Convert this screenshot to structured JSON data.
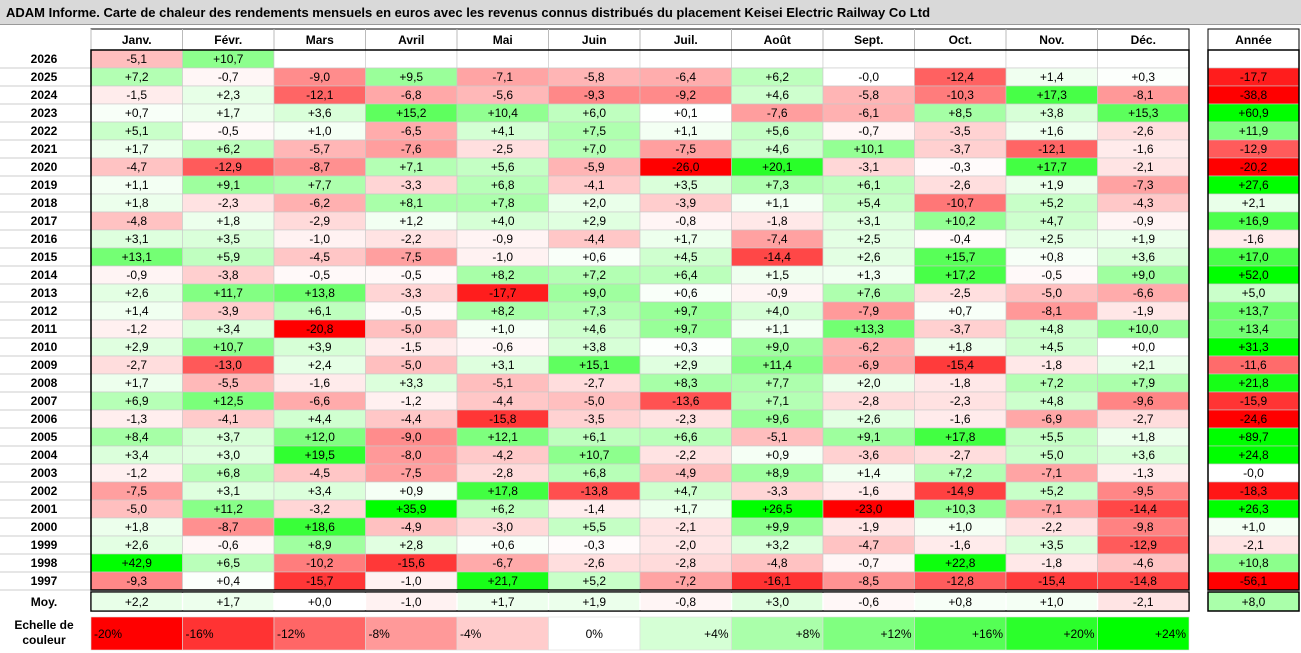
{
  "title": "ADAM Informe. Carte de chaleur des rendements mensuels en euros avec les revenus connus distribués du placement Keisei Electric Railway Co Ltd",
  "chart_data": {
    "type": "heatmap",
    "months": [
      "Janv.",
      "Févr.",
      "Mars",
      "Avril",
      "Mai",
      "Juin",
      "Juil.",
      "Août",
      "Sept.",
      "Oct.",
      "Nov.",
      "Déc."
    ],
    "year_header": "Année",
    "rows": [
      {
        "year": "2026",
        "values": [
          -5.1,
          10.7,
          null,
          null,
          null,
          null,
          null,
          null,
          null,
          null,
          null,
          null
        ],
        "labels": [
          "-5,1",
          "+10,7",
          "",
          "",
          "",
          "",
          "",
          "",
          "",
          "",
          "",
          ""
        ],
        "annual": null,
        "annual_label": ""
      },
      {
        "year": "2025",
        "values": [
          7.2,
          -0.7,
          -9.0,
          9.5,
          -7.1,
          -5.8,
          -6.4,
          6.2,
          -0.0,
          -12.4,
          1.4,
          0.3
        ],
        "labels": [
          "+7,2",
          "-0,7",
          "-9,0",
          "+9,5",
          "-7,1",
          "-5,8",
          "-6,4",
          "+6,2",
          "-0,0",
          "-12,4",
          "+1,4",
          "+0,3"
        ],
        "annual": -17.7,
        "annual_label": "-17,7"
      },
      {
        "year": "2024",
        "values": [
          -1.5,
          2.3,
          -12.1,
          -6.8,
          -5.6,
          -9.3,
          -9.2,
          4.6,
          -5.8,
          -10.3,
          17.3,
          -8.1
        ],
        "labels": [
          "-1,5",
          "+2,3",
          "-12,1",
          "-6,8",
          "-5,6",
          "-9,3",
          "-9,2",
          "+4,6",
          "-5,8",
          "-10,3",
          "+17,3",
          "-8,1"
        ],
        "annual": -38.8,
        "annual_label": "-38,8"
      },
      {
        "year": "2023",
        "values": [
          0.7,
          1.7,
          3.6,
          15.2,
          10.4,
          6.0,
          0.1,
          -7.6,
          -6.1,
          8.5,
          3.8,
          15.3
        ],
        "labels": [
          "+0,7",
          "+1,7",
          "+3,6",
          "+15,2",
          "+10,4",
          "+6,0",
          "+0,1",
          "-7,6",
          "-6,1",
          "+8,5",
          "+3,8",
          "+15,3"
        ],
        "annual": 60.9,
        "annual_label": "+60,9"
      },
      {
        "year": "2022",
        "values": [
          5.1,
          -0.5,
          1.0,
          -6.5,
          4.1,
          7.5,
          1.1,
          5.6,
          -0.7,
          -3.5,
          1.6,
          -2.6
        ],
        "labels": [
          "+5,1",
          "-0,5",
          "+1,0",
          "-6,5",
          "+4,1",
          "+7,5",
          "+1,1",
          "+5,6",
          "-0,7",
          "-3,5",
          "+1,6",
          "-2,6"
        ],
        "annual": 11.9,
        "annual_label": "+11,9"
      },
      {
        "year": "2021",
        "values": [
          1.7,
          6.2,
          -5.7,
          -7.6,
          -2.5,
          7.0,
          -7.5,
          4.6,
          10.1,
          -3.7,
          -12.1,
          -1.6
        ],
        "labels": [
          "+1,7",
          "+6,2",
          "-5,7",
          "-7,6",
          "-2,5",
          "+7,0",
          "-7,5",
          "+4,6",
          "+10,1",
          "-3,7",
          "-12,1",
          "-1,6"
        ],
        "annual": -12.9,
        "annual_label": "-12,9"
      },
      {
        "year": "2020",
        "values": [
          -4.7,
          -12.9,
          -8.7,
          7.1,
          5.6,
          -5.9,
          -26.0,
          20.1,
          -3.1,
          -0.3,
          17.7,
          -2.1
        ],
        "labels": [
          "-4,7",
          "-12,9",
          "-8,7",
          "+7,1",
          "+5,6",
          "-5,9",
          "-26,0",
          "+20,1",
          "-3,1",
          "-0,3",
          "+17,7",
          "-2,1"
        ],
        "annual": -20.2,
        "annual_label": "-20,2"
      },
      {
        "year": "2019",
        "values": [
          1.1,
          9.1,
          7.7,
          -3.3,
          6.8,
          -4.1,
          3.5,
          7.3,
          6.1,
          -2.6,
          1.9,
          -7.3
        ],
        "labels": [
          "+1,1",
          "+9,1",
          "+7,7",
          "-3,3",
          "+6,8",
          "-4,1",
          "+3,5",
          "+7,3",
          "+6,1",
          "-2,6",
          "+1,9",
          "-7,3"
        ],
        "annual": 27.6,
        "annual_label": "+27,6"
      },
      {
        "year": "2018",
        "values": [
          1.8,
          -2.3,
          -6.2,
          8.1,
          7.8,
          2.0,
          -3.9,
          1.1,
          5.4,
          -10.7,
          5.2,
          -4.3
        ],
        "labels": [
          "+1,8",
          "-2,3",
          "-6,2",
          "+8,1",
          "+7,8",
          "+2,0",
          "-3,9",
          "+1,1",
          "+5,4",
          "-10,7",
          "+5,2",
          "-4,3"
        ],
        "annual": 2.1,
        "annual_label": "+2,1"
      },
      {
        "year": "2017",
        "values": [
          -4.8,
          1.8,
          -2.9,
          1.2,
          4.0,
          2.9,
          -0.8,
          -1.8,
          3.1,
          10.2,
          4.7,
          -0.9
        ],
        "labels": [
          "-4,8",
          "+1,8",
          "-2,9",
          "+1,2",
          "+4,0",
          "+2,9",
          "-0,8",
          "-1,8",
          "+3,1",
          "+10,2",
          "+4,7",
          "-0,9"
        ],
        "annual": 16.9,
        "annual_label": "+16,9"
      },
      {
        "year": "2016",
        "values": [
          3.1,
          3.5,
          -1.0,
          -2.2,
          -0.9,
          -4.4,
          1.7,
          -7.4,
          2.5,
          -0.4,
          2.5,
          1.9
        ],
        "labels": [
          "+3,1",
          "+3,5",
          "-1,0",
          "-2,2",
          "-0,9",
          "-4,4",
          "+1,7",
          "-7,4",
          "+2,5",
          "-0,4",
          "+2,5",
          "+1,9"
        ],
        "annual": -1.6,
        "annual_label": "-1,6"
      },
      {
        "year": "2015",
        "values": [
          13.1,
          5.9,
          -4.5,
          -7.5,
          -1.0,
          0.6,
          4.5,
          -14.4,
          2.6,
          15.7,
          0.8,
          3.6
        ],
        "labels": [
          "+13,1",
          "+5,9",
          "-4,5",
          "-7,5",
          "-1,0",
          "+0,6",
          "+4,5",
          "-14,4",
          "+2,6",
          "+15,7",
          "+0,8",
          "+3,6"
        ],
        "annual": 17.0,
        "annual_label": "+17,0"
      },
      {
        "year": "2014",
        "values": [
          -0.9,
          -3.8,
          -0.5,
          -0.5,
          8.2,
          7.2,
          6.4,
          1.5,
          1.3,
          17.2,
          -0.5,
          9.0
        ],
        "labels": [
          "-0,9",
          "-3,8",
          "-0,5",
          "-0,5",
          "+8,2",
          "+7,2",
          "+6,4",
          "+1,5",
          "+1,3",
          "+17,2",
          "-0,5",
          "+9,0"
        ],
        "annual": 52.0,
        "annual_label": "+52,0"
      },
      {
        "year": "2013",
        "values": [
          2.6,
          11.7,
          13.8,
          -3.3,
          -17.7,
          9.0,
          0.6,
          -0.9,
          7.6,
          -2.5,
          -5.0,
          -6.6
        ],
        "labels": [
          "+2,6",
          "+11,7",
          "+13,8",
          "-3,3",
          "-17,7",
          "+9,0",
          "+0,6",
          "-0,9",
          "+7,6",
          "-2,5",
          "-5,0",
          "-6,6"
        ],
        "annual": 5.0,
        "annual_label": "+5,0"
      },
      {
        "year": "2012",
        "values": [
          1.4,
          -3.9,
          6.1,
          -0.5,
          8.2,
          7.3,
          9.7,
          4.0,
          -7.9,
          0.7,
          -8.1,
          -1.9
        ],
        "labels": [
          "+1,4",
          "-3,9",
          "+6,1",
          "-0,5",
          "+8,2",
          "+7,3",
          "+9,7",
          "+4,0",
          "-7,9",
          "+0,7",
          "-8,1",
          "-1,9"
        ],
        "annual": 13.7,
        "annual_label": "+13,7"
      },
      {
        "year": "2011",
        "values": [
          -1.2,
          3.4,
          -20.8,
          -5.0,
          1.0,
          4.6,
          9.7,
          1.1,
          13.3,
          -3.7,
          4.8,
          10.0
        ],
        "labels": [
          "-1,2",
          "+3,4",
          "-20,8",
          "-5,0",
          "+1,0",
          "+4,6",
          "+9,7",
          "+1,1",
          "+13,3",
          "-3,7",
          "+4,8",
          "+10,0"
        ],
        "annual": 13.4,
        "annual_label": "+13,4"
      },
      {
        "year": "2010",
        "values": [
          2.9,
          10.7,
          3.9,
          -1.5,
          -0.6,
          3.8,
          0.3,
          9.0,
          -6.2,
          1.8,
          4.5,
          0.0
        ],
        "labels": [
          "+2,9",
          "+10,7",
          "+3,9",
          "-1,5",
          "-0,6",
          "+3,8",
          "+0,3",
          "+9,0",
          "-6,2",
          "+1,8",
          "+4,5",
          "+0,0"
        ],
        "annual": 31.3,
        "annual_label": "+31,3"
      },
      {
        "year": "2009",
        "values": [
          -2.7,
          -13.0,
          2.4,
          -5.0,
          3.1,
          15.1,
          2.9,
          11.4,
          -6.9,
          -15.4,
          -1.8,
          2.1
        ],
        "labels": [
          "-2,7",
          "-13,0",
          "+2,4",
          "-5,0",
          "+3,1",
          "+15,1",
          "+2,9",
          "+11,4",
          "-6,9",
          "-15,4",
          "-1,8",
          "+2,1"
        ],
        "annual": -11.6,
        "annual_label": "-11,6"
      },
      {
        "year": "2008",
        "values": [
          1.7,
          -5.5,
          -1.6,
          3.3,
          -5.1,
          -2.7,
          8.3,
          7.7,
          2.0,
          -1.8,
          7.2,
          7.9
        ],
        "labels": [
          "+1,7",
          "-5,5",
          "-1,6",
          "+3,3",
          "-5,1",
          "-2,7",
          "+8,3",
          "+7,7",
          "+2,0",
          "-1,8",
          "+7,2",
          "+7,9"
        ],
        "annual": 21.8,
        "annual_label": "+21,8"
      },
      {
        "year": "2007",
        "values": [
          6.9,
          12.5,
          -6.6,
          -1.2,
          -4.4,
          -5.0,
          -13.6,
          7.1,
          -2.8,
          -2.3,
          4.8,
          -9.6
        ],
        "labels": [
          "+6,9",
          "+12,5",
          "-6,6",
          "-1,2",
          "-4,4",
          "-5,0",
          "-13,6",
          "+7,1",
          "-2,8",
          "-2,3",
          "+4,8",
          "-9,6"
        ],
        "annual": -15.9,
        "annual_label": "-15,9"
      },
      {
        "year": "2006",
        "values": [
          -1.3,
          -4.1,
          4.4,
          -4.4,
          -15.8,
          -3.5,
          -2.3,
          9.6,
          2.6,
          -1.6,
          -6.9,
          -2.7
        ],
        "labels": [
          "-1,3",
          "-4,1",
          "+4,4",
          "-4,4",
          "-15,8",
          "-3,5",
          "-2,3",
          "+9,6",
          "+2,6",
          "-1,6",
          "-6,9",
          "-2,7"
        ],
        "annual": -24.6,
        "annual_label": "-24,6"
      },
      {
        "year": "2005",
        "values": [
          8.4,
          3.7,
          12.0,
          -9.0,
          12.1,
          6.1,
          6.6,
          -5.1,
          9.1,
          17.8,
          5.5,
          1.8
        ],
        "labels": [
          "+8,4",
          "+3,7",
          "+12,0",
          "-9,0",
          "+12,1",
          "+6,1",
          "+6,6",
          "-5,1",
          "+9,1",
          "+17,8",
          "+5,5",
          "+1,8"
        ],
        "annual": 89.7,
        "annual_label": "+89,7"
      },
      {
        "year": "2004",
        "values": [
          3.4,
          3.0,
          19.5,
          -8.0,
          -4.2,
          10.7,
          -2.2,
          0.9,
          -3.6,
          -2.7,
          5.0,
          3.6
        ],
        "labels": [
          "+3,4",
          "+3,0",
          "+19,5",
          "-8,0",
          "-4,2",
          "+10,7",
          "-2,2",
          "+0,9",
          "-3,6",
          "-2,7",
          "+5,0",
          "+3,6"
        ],
        "annual": 24.8,
        "annual_label": "+24,8"
      },
      {
        "year": "2003",
        "values": [
          -1.2,
          6.8,
          -4.5,
          -7.5,
          -2.8,
          6.8,
          -4.9,
          8.9,
          1.4,
          7.2,
          -7.1,
          -1.3
        ],
        "labels": [
          "-1,2",
          "+6,8",
          "-4,5",
          "-7,5",
          "-2,8",
          "+6,8",
          "-4,9",
          "+8,9",
          "+1,4",
          "+7,2",
          "-7,1",
          "-1,3"
        ],
        "annual": -0.0,
        "annual_label": "-0,0"
      },
      {
        "year": "2002",
        "values": [
          -7.5,
          3.1,
          3.4,
          0.9,
          17.8,
          -13.8,
          4.7,
          -3.3,
          -1.6,
          -14.9,
          5.2,
          -9.5
        ],
        "labels": [
          "-7,5",
          "+3,1",
          "+3,4",
          "+0,9",
          "+17,8",
          "-13,8",
          "+4,7",
          "-3,3",
          "-1,6",
          "-14,9",
          "+5,2",
          "-9,5"
        ],
        "annual": -18.3,
        "annual_label": "-18,3"
      },
      {
        "year": "2001",
        "values": [
          -5.0,
          11.2,
          -3.2,
          35.9,
          6.2,
          -1.4,
          1.7,
          26.5,
          -23.0,
          10.3,
          -7.1,
          -14.4
        ],
        "labels": [
          "-5,0",
          "+11,2",
          "-3,2",
          "+35,9",
          "+6,2",
          "-1,4",
          "+1,7",
          "+26,5",
          "-23,0",
          "+10,3",
          "-7,1",
          "-14,4"
        ],
        "annual": 26.3,
        "annual_label": "+26,3"
      },
      {
        "year": "2000",
        "values": [
          1.8,
          -8.7,
          18.6,
          -4.9,
          -3.0,
          5.5,
          -2.1,
          9.9,
          -1.9,
          1.0,
          -2.2,
          -9.8
        ],
        "labels": [
          "+1,8",
          "-8,7",
          "+18,6",
          "-4,9",
          "-3,0",
          "+5,5",
          "-2,1",
          "+9,9",
          "-1,9",
          "+1,0",
          "-2,2",
          "-9,8"
        ],
        "annual": 1.0,
        "annual_label": "+1,0"
      },
      {
        "year": "1999",
        "values": [
          2.6,
          -0.6,
          8.9,
          2.8,
          0.6,
          -0.3,
          -2.0,
          3.2,
          -4.7,
          -1.6,
          3.5,
          -12.9
        ],
        "labels": [
          "+2,6",
          "-0,6",
          "+8,9",
          "+2,8",
          "+0,6",
          "-0,3",
          "-2,0",
          "+3,2",
          "-4,7",
          "-1,6",
          "+3,5",
          "-12,9"
        ],
        "annual": -2.1,
        "annual_label": "-2,1"
      },
      {
        "year": "1998",
        "values": [
          42.9,
          6.5,
          -10.2,
          -15.6,
          -6.7,
          -2.6,
          -2.8,
          -4.8,
          -0.7,
          22.8,
          -1.8,
          -4.6
        ],
        "labels": [
          "+42,9",
          "+6,5",
          "-10,2",
          "-15,6",
          "-6,7",
          "-2,6",
          "-2,8",
          "-4,8",
          "-0,7",
          "+22,8",
          "-1,8",
          "-4,6"
        ],
        "annual": 10.8,
        "annual_label": "+10,8"
      },
      {
        "year": "1997",
        "values": [
          -9.3,
          0.4,
          -15.7,
          -1.0,
          21.7,
          5.2,
          -7.2,
          -16.1,
          -8.5,
          -12.8,
          -15.4,
          -14.8
        ],
        "labels": [
          "-9,3",
          "+0,4",
          "-15,7",
          "-1,0",
          "+21,7",
          "+5,2",
          "-7,2",
          "-16,1",
          "-8,5",
          "-12,8",
          "-15,4",
          "-14,8"
        ],
        "annual": -56.1,
        "annual_label": "-56,1"
      }
    ],
    "average": {
      "label": "Moy.",
      "values": [
        2.2,
        1.7,
        0.0,
        -1.0,
        1.7,
        1.9,
        -0.8,
        3.0,
        -0.6,
        0.8,
        1.0,
        -2.1
      ],
      "labels": [
        "+2,2",
        "+1,7",
        "+0,0",
        "-1,0",
        "+1,7",
        "+1,9",
        "-0,8",
        "+3,0",
        "-0,6",
        "+0,8",
        "+1,0",
        "-2,1"
      ],
      "annual": 8.0,
      "annual_label": "+8,0"
    },
    "scale": {
      "label": "Echelle de couleur",
      "label_lines": [
        "Echelle de",
        "couleur"
      ],
      "steps": [
        {
          "value": -20,
          "label": "-20%"
        },
        {
          "value": -16,
          "label": "-16%"
        },
        {
          "value": -12,
          "label": "-12%"
        },
        {
          "value": -8,
          "label": "-8%"
        },
        {
          "value": -4,
          "label": "-4%"
        },
        {
          "value": 0,
          "label": "0%"
        },
        {
          "value": 4,
          "label": "+4%"
        },
        {
          "value": 8,
          "label": "+8%"
        },
        {
          "value": 12,
          "label": "+12%"
        },
        {
          "value": 16,
          "label": "+16%"
        },
        {
          "value": 20,
          "label": "+20%"
        },
        {
          "value": 24,
          "label": "+24%"
        }
      ]
    },
    "colors": {
      "negative_max": "#ff0000",
      "positive_max": "#00ff00",
      "neutral": "#ffffff",
      "header_bg": "#d9d9d9"
    }
  }
}
